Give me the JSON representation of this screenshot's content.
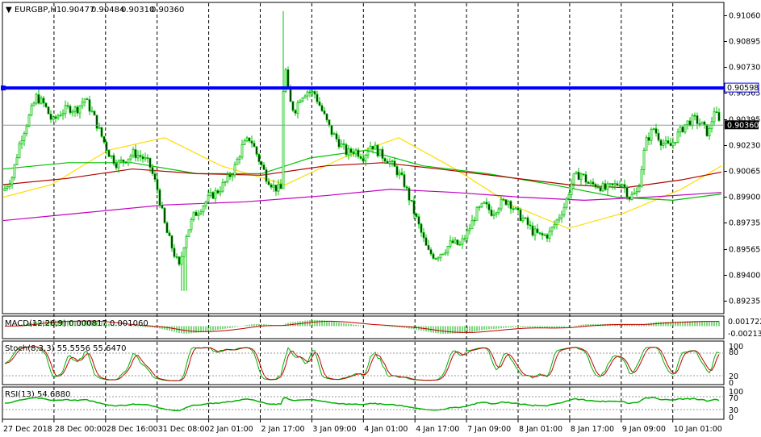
{
  "chart_data": {
    "type": "candlestick",
    "header": {
      "symbol": "EURGBP,H1",
      "open": "0.90477",
      "high": "0.90484",
      "low": "0.90310",
      "close": "0.90360"
    },
    "price_axis": {
      "ylim": [
        0.8916,
        0.9114
      ],
      "ticks": [
        "0.91060",
        "0.90895",
        "0.90730",
        "0.90565",
        "0.90395",
        "0.90230",
        "0.90065",
        "0.89900",
        "0.89735",
        "0.89565",
        "0.89400",
        "0.89235"
      ]
    },
    "time_axis": {
      "labels": [
        "27 Dec 2018",
        "28 Dec 00:00",
        "28 Dec 16:00",
        "31 Dec 08:00",
        "2 Jan 01:00",
        "2 Jan 17:00",
        "3 Jan 09:00",
        "4 Jan 01:00",
        "4 Jan 17:00",
        "7 Jan 09:00",
        "8 Jan 01:00",
        "8 Jan 17:00",
        "9 Jan 09:00",
        "10 Jan 01:00"
      ]
    },
    "resistance": {
      "price": 0.90598,
      "label": "0.90598",
      "color": "#0000ff"
    },
    "current_price": {
      "price": 0.9036,
      "label": "0.90360"
    },
    "price_path": [
      [
        0,
        0.8991
      ],
      [
        15,
        0.9003
      ],
      [
        25,
        0.9026
      ],
      [
        35,
        0.904
      ],
      [
        45,
        0.9054
      ],
      [
        55,
        0.9049
      ],
      [
        65,
        0.9038
      ],
      [
        75,
        0.9044
      ],
      [
        85,
        0.9047
      ],
      [
        95,
        0.9046
      ],
      [
        105,
        0.9053
      ],
      [
        115,
        0.9043
      ],
      [
        125,
        0.903
      ],
      [
        135,
        0.9018
      ],
      [
        145,
        0.9011
      ],
      [
        155,
        0.9014
      ],
      [
        165,
        0.9018
      ],
      [
        175,
        0.9016
      ],
      [
        185,
        0.9011
      ],
      [
        195,
        0.8995
      ],
      [
        205,
        0.897
      ],
      [
        215,
        0.8955
      ],
      [
        222,
        0.8945
      ],
      [
        230,
        0.8965
      ],
      [
        240,
        0.8978
      ],
      [
        250,
        0.8984
      ],
      [
        260,
        0.899
      ],
      [
        270,
        0.8994
      ],
      [
        280,
        0.9
      ],
      [
        290,
        0.9008
      ],
      [
        300,
        0.9022
      ],
      [
        310,
        0.9028
      ],
      [
        320,
        0.9015
      ],
      [
        330,
        0.9003
      ],
      [
        340,
        0.8996
      ],
      [
        348,
        0.8995
      ],
      [
        352,
        0.908
      ],
      [
        358,
        0.9052
      ],
      [
        365,
        0.9045
      ],
      [
        372,
        0.9054
      ],
      [
        380,
        0.9058
      ],
      [
        390,
        0.9056
      ],
      [
        400,
        0.9044
      ],
      [
        410,
        0.9032
      ],
      [
        420,
        0.9025
      ],
      [
        430,
        0.9018
      ],
      [
        440,
        0.902
      ],
      [
        450,
        0.9016
      ],
      [
        460,
        0.9024
      ],
      [
        470,
        0.9018
      ],
      [
        480,
        0.9014
      ],
      [
        490,
        0.9008
      ],
      [
        500,
        0.9
      ],
      [
        510,
        0.8985
      ],
      [
        520,
        0.897
      ],
      [
        530,
        0.8955
      ],
      [
        540,
        0.8952
      ],
      [
        550,
        0.8956
      ],
      [
        560,
        0.8961
      ],
      [
        570,
        0.8959
      ],
      [
        580,
        0.8968
      ],
      [
        590,
        0.898
      ],
      [
        600,
        0.8985
      ],
      [
        610,
        0.898
      ],
      [
        620,
        0.8986
      ],
      [
        630,
        0.8988
      ],
      [
        640,
        0.898
      ],
      [
        650,
        0.8975
      ],
      [
        660,
        0.8968
      ],
      [
        670,
        0.8965
      ],
      [
        680,
        0.8966
      ],
      [
        690,
        0.8975
      ],
      [
        700,
        0.8985
      ],
      [
        710,
        0.9002
      ],
      [
        720,
        0.9005
      ],
      [
        730,
        0.8998
      ],
      [
        740,
        0.8998
      ],
      [
        750,
        0.8995
      ],
      [
        760,
        0.8997
      ],
      [
        770,
        0.9
      ],
      [
        780,
        0.899
      ],
      [
        790,
        0.8993
      ],
      [
        800,
        0.9025
      ],
      [
        810,
        0.9034
      ],
      [
        820,
        0.9025
      ],
      [
        830,
        0.9022
      ],
      [
        840,
        0.903
      ],
      [
        850,
        0.9037
      ],
      [
        860,
        0.904
      ],
      [
        870,
        0.9036
      ],
      [
        878,
        0.903
      ],
      [
        885,
        0.9046
      ],
      [
        892,
        0.9036
      ]
    ],
    "moving_averages": [
      {
        "color": "#ffdd00",
        "points": [
          [
            0,
            0.899
          ],
          [
            60,
            0.8998
          ],
          [
            130,
            0.902
          ],
          [
            200,
            0.9028
          ],
          [
            270,
            0.901
          ],
          [
            350,
            0.8998
          ],
          [
            420,
            0.9015
          ],
          [
            490,
            0.9028
          ],
          [
            560,
            0.9008
          ],
          [
            630,
            0.8985
          ],
          [
            700,
            0.897
          ],
          [
            770,
            0.898
          ],
          [
            840,
            0.8995
          ],
          [
            890,
            0.901
          ]
        ]
      },
      {
        "color": "#00c000",
        "points": [
          [
            0,
            0.9008
          ],
          [
            80,
            0.9012
          ],
          [
            160,
            0.9012
          ],
          [
            240,
            0.9005
          ],
          [
            320,
            0.9005
          ],
          [
            380,
            0.9015
          ],
          [
            450,
            0.902
          ],
          [
            520,
            0.901
          ],
          [
            600,
            0.9005
          ],
          [
            680,
            0.8998
          ],
          [
            760,
            0.899
          ],
          [
            830,
            0.8988
          ],
          [
            890,
            0.8992
          ]
        ]
      },
      {
        "color": "#b00000",
        "points": [
          [
            0,
            0.8998
          ],
          [
            80,
            0.9002
          ],
          [
            160,
            0.9008
          ],
          [
            240,
            0.9005
          ],
          [
            320,
            0.9004
          ],
          [
            400,
            0.901
          ],
          [
            470,
            0.9012
          ],
          [
            540,
            0.9008
          ],
          [
            620,
            0.9003
          ],
          [
            700,
            0.8998
          ],
          [
            770,
            0.8996
          ],
          [
            840,
            0.9001
          ],
          [
            890,
            0.9006
          ]
        ]
      },
      {
        "color": "#c000c0",
        "points": [
          [
            0,
            0.8975
          ],
          [
            100,
            0.898
          ],
          [
            200,
            0.8985
          ],
          [
            300,
            0.8987
          ],
          [
            400,
            0.8991
          ],
          [
            480,
            0.8995
          ],
          [
            560,
            0.8993
          ],
          [
            640,
            0.899
          ],
          [
            720,
            0.8988
          ],
          [
            800,
            0.899
          ],
          [
            890,
            0.8993
          ]
        ]
      }
    ],
    "indicators": {
      "macd": {
        "label": "MACD(12,26,9) 0.000817 0.001060",
        "ticks": [
          "0.001722",
          "-0.002135"
        ],
        "ylim": [
          -0.0028,
          0.0022
        ]
      },
      "stoch": {
        "label": "Stoch(8,3,3) 55.5556 55.6470",
        "ticks": [
          "100",
          "80",
          "20",
          "0"
        ],
        "ylim": [
          0,
          100
        ]
      },
      "rsi": {
        "label": "RSI(13) 54.6880",
        "ticks": [
          "100",
          "70",
          "30",
          "0"
        ],
        "ylim": [
          0,
          100
        ]
      }
    }
  }
}
